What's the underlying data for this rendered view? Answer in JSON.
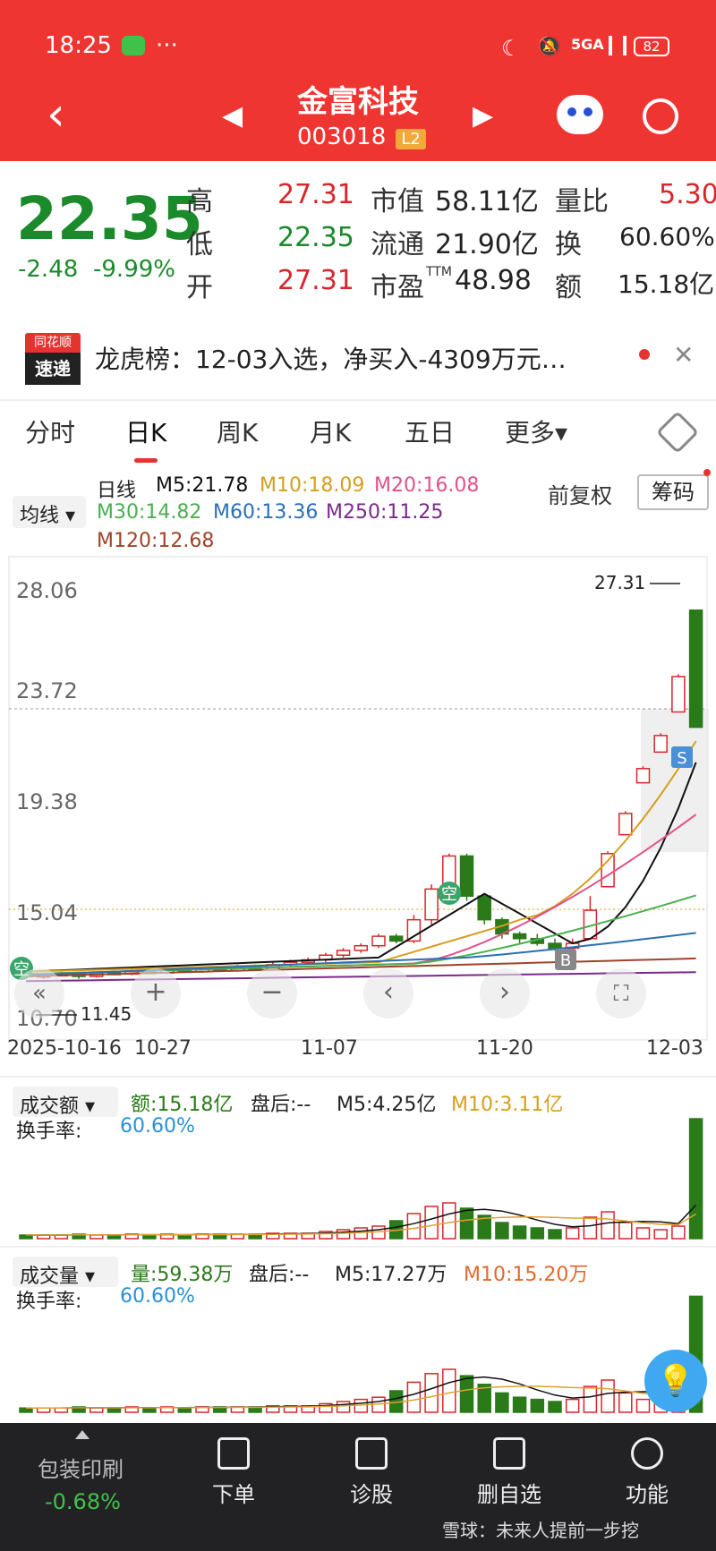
{
  "status": {
    "time": "18:25",
    "dots": "···",
    "network": "5GA",
    "battery": "82"
  },
  "header": {
    "title": "金富科技",
    "code": "003018",
    "level": "L2"
  },
  "quote": {
    "price": "22.35",
    "change": "-2.48",
    "change_pct": "-9.99%",
    "high_label": "高",
    "high": "27.31",
    "low_label": "低",
    "low": "22.35",
    "open_label": "开",
    "open": "27.31",
    "mcap_label": "市值",
    "mcap": "58.11亿",
    "float_label": "流通",
    "float": "21.90亿",
    "pe_label": "市盈",
    "pe_sup": "TTM",
    "pe": "48.98",
    "volratio_label": "量比",
    "volratio": "5.30",
    "turnover_label": "换",
    "turnover": "60.60%",
    "amount_label": "额",
    "amount": "15.18亿"
  },
  "news": {
    "brand_top": "同花顺",
    "brand_bottom": "速递",
    "text": "龙虎榜：12-03入选，净买入-4309万元…"
  },
  "tabs": [
    "分时",
    "日K",
    "周K",
    "月K",
    "五日",
    "更多▾"
  ],
  "indicators": {
    "ma_select": "均线",
    "period": "日线",
    "m5": "M5:21.78",
    "m10": "M10:18.09",
    "m20": "M20:16.08",
    "m30": "M30:14.82",
    "m60": "M60:13.36",
    "m250": "M250:11.25",
    "m120": "M120:12.68",
    "adjust": "前复权",
    "chips": "筹码"
  },
  "colors": {
    "m5": "#111111",
    "m10": "#d69e1e",
    "m20": "#e0528a",
    "m30": "#4caf50",
    "m60": "#2a6fb5",
    "m250": "#7a2a8a",
    "m120": "#a0422a",
    "up": "#d8262b",
    "down": "#2a7a1a"
  },
  "chart_data": {
    "type": "candlestick",
    "y_ticks": [
      "28.06",
      "23.72",
      "19.38",
      "15.04",
      "10.70"
    ],
    "high_marker": "27.31",
    "low_marker": "11.45",
    "x_labels": [
      "2025-10-16",
      "10-27",
      "11-07",
      "11-20",
      "12-03"
    ],
    "markers": [
      "空",
      "空",
      "S",
      "B"
    ]
  },
  "amount_panel": {
    "select": "成交额",
    "value": "额:15.18亿",
    "after": "盘后:--",
    "m5": "M5:4.25亿",
    "m10": "M10:3.11亿",
    "turnover_label": "换手率:",
    "turnover": "60.60%"
  },
  "volume_panel": {
    "select": "成交量",
    "value": "量:59.38万",
    "after": "盘后:--",
    "m5": "M5:17.27万",
    "m10": "M10:15.20万",
    "turnover_label": "换手率:",
    "turnover": "60.60%"
  },
  "bottom": {
    "sector_name": "包装印刷",
    "sector_change": "-0.68%",
    "order": "下单",
    "diagnose": "诊股",
    "remove_watch": "删自选",
    "functions": "功能",
    "watermark": "雪球：未来人提前一步挖"
  }
}
